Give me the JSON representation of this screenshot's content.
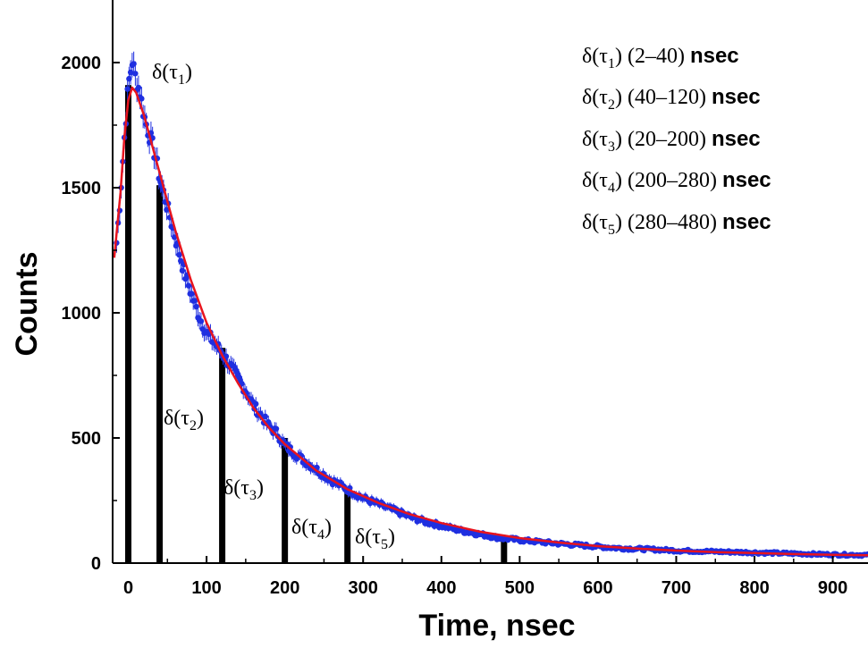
{
  "chart_data": {
    "type": "scatter",
    "title": "",
    "xlabel": "Time, nsec",
    "ylabel": "Counts",
    "xlim": [
      -20,
      945
    ],
    "ylim": [
      0,
      2250
    ],
    "x_ticks": [
      0,
      100,
      200,
      300,
      400,
      500,
      600,
      700,
      800,
      900
    ],
    "y_ticks": [
      0,
      500,
      1000,
      1500,
      2000
    ],
    "grid": false,
    "colors": {
      "points": "#1f2fe0",
      "fit": "#e8141e",
      "bars": "#000000"
    },
    "series": [
      {
        "kind": "measured-points-with-error-bars",
        "x": [
          -15,
          -10,
          -5,
          0,
          5,
          10,
          15,
          20,
          25,
          30,
          35,
          40,
          50,
          60,
          70,
          80,
          90,
          100,
          110,
          120,
          130,
          140,
          150,
          160,
          170,
          180,
          190,
          200,
          220,
          240,
          260,
          280,
          300,
          320,
          340,
          360,
          380,
          400,
          425,
          450,
          475,
          500,
          525,
          550,
          575,
          600,
          625,
          650,
          675,
          700,
          725,
          750,
          775,
          800,
          825,
          850,
          875,
          900,
          925,
          945
        ],
        "y": [
          1280,
          1470,
          1700,
          1910,
          2005,
          1930,
          1880,
          1790,
          1730,
          1680,
          1620,
          1540,
          1420,
          1300,
          1180,
          1080,
          990,
          920,
          880,
          840,
          790,
          740,
          690,
          630,
          590,
          545,
          520,
          470,
          420,
          375,
          330,
          295,
          260,
          235,
          210,
          185,
          165,
          150,
          130,
          115,
          100,
          92,
          85,
          78,
          72,
          66,
          60,
          57,
          54,
          50,
          48,
          46,
          44,
          42,
          40,
          38,
          36,
          34,
          33,
          32
        ]
      },
      {
        "kind": "fit-curve",
        "x": [
          -18,
          -10,
          -5,
          0,
          5,
          10,
          20,
          40,
          60,
          80,
          100,
          120,
          140,
          160,
          180,
          200,
          240,
          280,
          320,
          360,
          400,
          450,
          500,
          550,
          600,
          650,
          700,
          750,
          800,
          850,
          900,
          945
        ],
        "y": [
          1220,
          1480,
          1700,
          1850,
          1900,
          1880,
          1790,
          1560,
          1330,
          1130,
          960,
          830,
          720,
          620,
          540,
          475,
          370,
          295,
          240,
          195,
          160,
          125,
          100,
          82,
          68,
          58,
          50,
          44,
          40,
          36,
          33,
          31
        ]
      }
    ],
    "bars": [
      {
        "x": 0,
        "value": 1910
      },
      {
        "x": 40,
        "value": 1510
      },
      {
        "x": 120,
        "value": 860
      },
      {
        "x": 200,
        "value": 500
      },
      {
        "x": 280,
        "value": 295
      },
      {
        "x": 480,
        "value": 95
      }
    ],
    "bar_labels": [
      {
        "symbol": "δ(τ",
        "index": "1",
        "close": ")"
      },
      {
        "symbol": "δ(τ",
        "index": "2",
        "close": ")"
      },
      {
        "symbol": "δ(τ",
        "index": "3",
        "close": ")"
      },
      {
        "symbol": "δ(τ",
        "index": "4",
        "close": ")"
      },
      {
        "symbol": "δ(τ",
        "index": "5",
        "close": ")"
      }
    ],
    "legend": {
      "placement": "top-right",
      "entries": [
        {
          "symbol": "δ(τ",
          "index": "1",
          "close": ")",
          "range": "(2–40)",
          "unit": "nsec"
        },
        {
          "symbol": "δ(τ",
          "index": "2",
          "close": ")",
          "range": "(40–120)",
          "unit": "nsec"
        },
        {
          "symbol": "δ(τ",
          "index": "3",
          "close": ")",
          "range": "(20–200)",
          "unit": "nsec"
        },
        {
          "symbol": "δ(τ",
          "index": "4",
          "close": ")",
          "range": "(200–280)",
          "unit": "nsec"
        },
        {
          "symbol": "δ(τ",
          "index": "5",
          "close": ")",
          "range": "(280–480)",
          "unit": "nsec"
        }
      ]
    }
  }
}
